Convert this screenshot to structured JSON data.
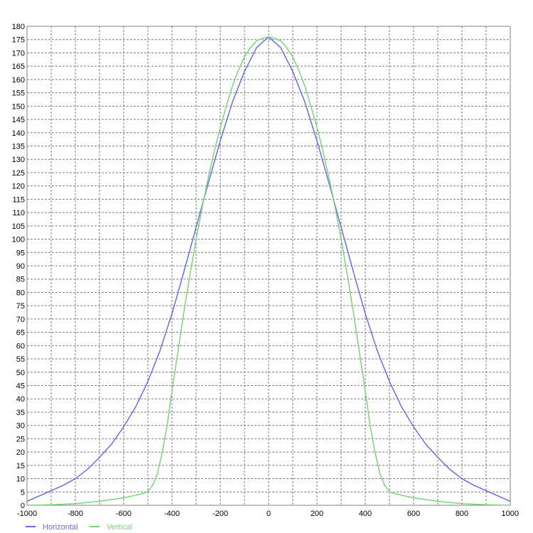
{
  "chart_data": {
    "type": "line",
    "title": "",
    "xlabel": "",
    "ylabel": "",
    "xlim": [
      -1000,
      1000
    ],
    "ylim": [
      0,
      180
    ],
    "x_ticks": [
      -1000,
      -800,
      -600,
      -400,
      -200,
      0,
      200,
      400,
      600,
      800,
      1000
    ],
    "x_tick_labels": [
      "-1000",
      "-800",
      "-600",
      "-400",
      "-200",
      "0",
      "200",
      "400",
      "600",
      "800",
      "1000"
    ],
    "y_ticks": [
      0,
      5,
      10,
      15,
      20,
      25,
      30,
      35,
      40,
      45,
      50,
      55,
      60,
      65,
      70,
      75,
      80,
      85,
      90,
      95,
      100,
      105,
      110,
      115,
      120,
      125,
      130,
      135,
      140,
      145,
      150,
      155,
      160,
      165,
      170,
      175,
      180
    ],
    "y_tick_labels": [
      "0",
      "5",
      "10",
      "15",
      "20",
      "25",
      "30",
      "35",
      "40",
      "45",
      "50",
      "55",
      "60",
      "65",
      "70",
      "75",
      "80",
      "85",
      "90",
      "95",
      "100",
      "105",
      "110",
      "115",
      "120",
      "125",
      "130",
      "135",
      "140",
      "145",
      "150",
      "155",
      "160",
      "165",
      "170",
      "175",
      "180"
    ],
    "grid": true,
    "legend_position": "bottom-left",
    "series": [
      {
        "name": "Horizontal",
        "color": "#6b6bf0",
        "x": [
          -1000,
          -950,
          -900,
          -850,
          -800,
          -750,
          -700,
          -650,
          -600,
          -550,
          -500,
          -450,
          -400,
          -350,
          -300,
          -250,
          -200,
          -150,
          -100,
          -50,
          0,
          50,
          100,
          150,
          200,
          250,
          300,
          350,
          400,
          450,
          500,
          550,
          600,
          650,
          700,
          750,
          800,
          850,
          900,
          950,
          1000
        ],
        "y": [
          1.5,
          3.5,
          5.5,
          7.5,
          10,
          13.5,
          18,
          23,
          29.5,
          37,
          46.5,
          58,
          72,
          88,
          104.5,
          121,
          137,
          151.5,
          163,
          172,
          176,
          172,
          163,
          151.5,
          137,
          121,
          104.5,
          88,
          72,
          58,
          46.5,
          37,
          29.5,
          23,
          18,
          13.5,
          10,
          7.5,
          5.5,
          3.5,
          1.5
        ]
      },
      {
        "name": "Vertical",
        "color": "#7ad67a",
        "x": [
          -1000,
          -900,
          -800,
          -700,
          -600,
          -550,
          -520,
          -500,
          -480,
          -460,
          -440,
          -420,
          -400,
          -375,
          -350,
          -325,
          -300,
          -275,
          -250,
          -225,
          -200,
          -175,
          -150,
          -125,
          -100,
          -75,
          -50,
          -25,
          0,
          25,
          50,
          75,
          100,
          125,
          150,
          175,
          200,
          225,
          250,
          275,
          300,
          325,
          350,
          375,
          400,
          420,
          440,
          460,
          480,
          500,
          520,
          550,
          600,
          700,
          800,
          900,
          1000
        ],
        "y": [
          0,
          0.2,
          0.6,
          1.5,
          2.8,
          3.8,
          4.4,
          5.2,
          7.5,
          12,
          20,
          30,
          43,
          58,
          73,
          87,
          100,
          112,
          123,
          133,
          142,
          150,
          157.5,
          163.5,
          168.5,
          172,
          174.5,
          175.5,
          176,
          175.5,
          174.5,
          172,
          168.5,
          163.5,
          157.5,
          150,
          142,
          133,
          123,
          112,
          100,
          87,
          73,
          58,
          43,
          30,
          20,
          12,
          7.5,
          5.2,
          4.4,
          3.8,
          2.8,
          1.5,
          0.6,
          0.2,
          0
        ]
      }
    ]
  }
}
